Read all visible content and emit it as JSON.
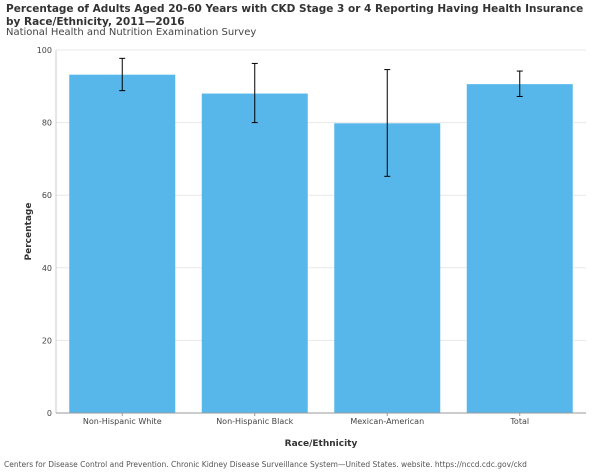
{
  "header": {
    "title": "Percentage of Adults Aged 20-60 Years with CKD Stage 3 or 4 Reporting Having Health Insurance by Race/Ethnicity, 2011—2016",
    "subtitle": "National Health and Nutrition Examination Survey"
  },
  "footer": {
    "source": "Centers for Disease Control and Prevention. Chronic Kidney Disease Surveillance System—United States. website. https://nccd.cdc.gov/ckd"
  },
  "chart_data": {
    "type": "bar",
    "title": "Percentage of Adults Aged 20-60 Years with CKD Stage 3 or 4 Reporting Having Health Insurance by Race/Ethnicity, 2011—2016",
    "subtitle": "National Health and Nutrition Examination Survey",
    "xlabel": "Race/Ethnicity",
    "ylabel": "Percentage",
    "categories": [
      "Non-Hispanic White",
      "Non-Hispanic Black",
      "Mexican-American",
      "Total"
    ],
    "values": [
      93.2,
      88.0,
      79.8,
      90.6
    ],
    "error_low": [
      88.8,
      80.0,
      65.2,
      87.2
    ],
    "error_high": [
      97.7,
      96.3,
      94.6,
      94.2
    ],
    "ylim": [
      0,
      100
    ],
    "yticks": [
      0,
      20,
      40,
      60,
      80,
      100
    ],
    "grid": true,
    "bar_color": "#58b7ea",
    "error_color": "#000000"
  }
}
